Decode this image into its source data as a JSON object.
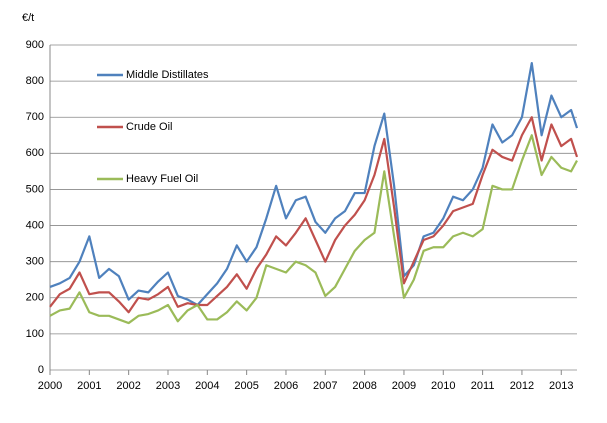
{
  "chart_data": {
    "type": "line",
    "y_label": "€/t",
    "x": [
      2000,
      2000.25,
      2000.5,
      2000.75,
      2001,
      2001.25,
      2001.5,
      2001.75,
      2002,
      2002.25,
      2002.5,
      2002.75,
      2003,
      2003.25,
      2003.5,
      2003.75,
      2004,
      2004.25,
      2004.5,
      2004.75,
      2005,
      2005.25,
      2005.5,
      2005.75,
      2006,
      2006.25,
      2006.5,
      2006.75,
      2007,
      2007.25,
      2007.5,
      2007.75,
      2008,
      2008.25,
      2008.5,
      2008.75,
      2009,
      2009.25,
      2009.5,
      2009.75,
      2010,
      2010.25,
      2010.5,
      2010.75,
      2011,
      2011.25,
      2011.5,
      2011.75,
      2012,
      2012.25,
      2012.5,
      2012.75,
      2013,
      2013.25,
      2013.4
    ],
    "series": [
      {
        "name": "Middle Distillates",
        "color": "#4f81bd",
        "values": [
          230,
          240,
          255,
          300,
          370,
          255,
          280,
          260,
          195,
          220,
          215,
          245,
          270,
          205,
          195,
          180,
          210,
          240,
          280,
          345,
          300,
          340,
          420,
          510,
          420,
          470,
          480,
          410,
          380,
          420,
          440,
          490,
          490,
          620,
          710,
          510,
          260,
          290,
          370,
          380,
          420,
          480,
          470,
          500,
          560,
          680,
          630,
          650,
          700,
          850,
          650,
          760,
          700,
          720,
          670
        ]
      },
      {
        "name": "Crude Oil",
        "color": "#c0504d",
        "values": [
          175,
          210,
          225,
          270,
          210,
          215,
          215,
          190,
          160,
          200,
          195,
          210,
          230,
          175,
          185,
          180,
          180,
          205,
          230,
          265,
          225,
          280,
          320,
          370,
          345,
          380,
          420,
          360,
          300,
          360,
          400,
          430,
          470,
          540,
          640,
          450,
          240,
          300,
          360,
          370,
          400,
          440,
          450,
          460,
          540,
          610,
          590,
          580,
          650,
          700,
          580,
          680,
          620,
          640,
          590
        ]
      },
      {
        "name": "Heavy Fuel Oil",
        "color": "#9bbb59",
        "values": [
          150,
          165,
          170,
          215,
          160,
          150,
          150,
          140,
          130,
          150,
          155,
          165,
          180,
          135,
          165,
          180,
          140,
          140,
          160,
          190,
          165,
          200,
          290,
          280,
          270,
          300,
          290,
          270,
          205,
          230,
          280,
          330,
          360,
          380,
          550,
          370,
          200,
          250,
          330,
          340,
          340,
          370,
          380,
          370,
          390,
          510,
          500,
          500,
          580,
          650,
          540,
          590,
          560,
          550,
          580
        ]
      }
    ],
    "xlim": [
      2000,
      2013.4
    ],
    "xticks": [
      2000,
      2001,
      2002,
      2003,
      2004,
      2005,
      2006,
      2007,
      2008,
      2009,
      2010,
      2011,
      2012,
      2013
    ],
    "ylim": [
      0,
      900
    ],
    "yticks": [
      0,
      100,
      200,
      300,
      400,
      500,
      600,
      700,
      800,
      900
    ],
    "grid": true
  }
}
